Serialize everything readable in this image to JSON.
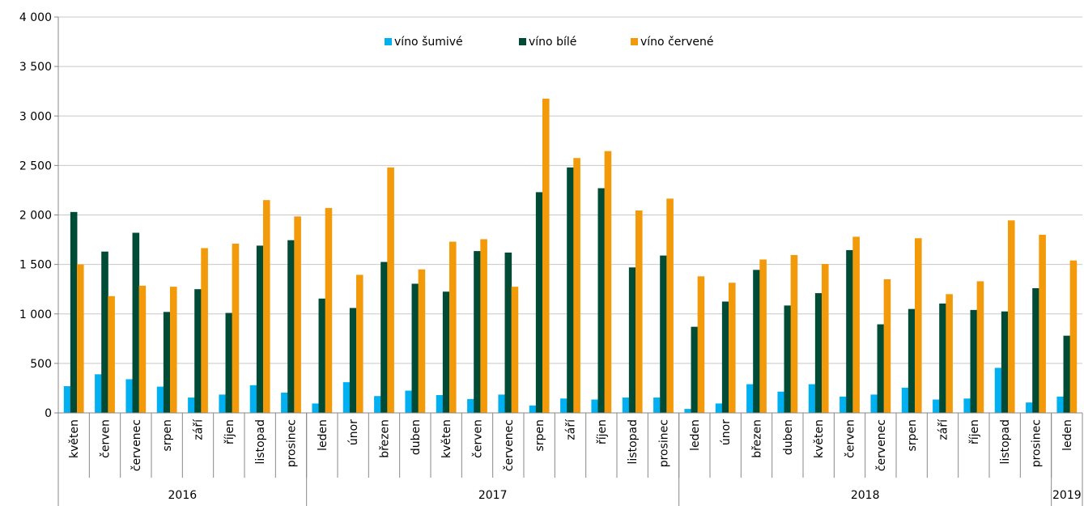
{
  "chart_data": {
    "type": "bar",
    "title": "",
    "xlabel": "",
    "ylabel": "",
    "ylim": [
      0,
      4000
    ],
    "y_ticks": [
      "0",
      "500",
      "1 000",
      "1 500",
      "2 000",
      "2 500",
      "3 000",
      "3 500",
      "4 000"
    ],
    "y_tick_values": [
      0,
      500,
      1000,
      1500,
      2000,
      2500,
      3000,
      3500,
      4000
    ],
    "grid": true,
    "legend_position": "top-center",
    "categories": [
      "květen",
      "červen",
      "červenec",
      "srpen",
      "září",
      "říjen",
      "listopad",
      "prosinec",
      "leden",
      "únor",
      "březen",
      "duben",
      "květen",
      "červen",
      "červenec",
      "srpen",
      "září",
      "říjen",
      "listopad",
      "prosinec",
      "leden",
      "únor",
      "březen",
      "duben",
      "květen",
      "červen",
      "červenec",
      "srpen",
      "září",
      "říjen",
      "listopad",
      "prosinec",
      "leden"
    ],
    "year_groups": [
      {
        "label": "2016",
        "start": 0,
        "count": 8
      },
      {
        "label": "2017",
        "start": 8,
        "count": 12
      },
      {
        "label": "2018",
        "start": 20,
        "count": 12
      },
      {
        "label": "2019",
        "start": 32,
        "count": 1
      }
    ],
    "series": [
      {
        "name": "víno šumivé",
        "color": "#00b0f0",
        "values": [
          270,
          390,
          340,
          265,
          155,
          185,
          280,
          205,
          95,
          310,
          170,
          225,
          180,
          140,
          185,
          75,
          145,
          135,
          155,
          155,
          40,
          95,
          290,
          215,
          290,
          165,
          185,
          255,
          135,
          145,
          455,
          105,
          165
        ]
      },
      {
        "name": "víno bílé",
        "color": "#004b35",
        "values": [
          2030,
          1630,
          1820,
          1020,
          1250,
          1010,
          1690,
          1745,
          1155,
          1060,
          1525,
          1305,
          1225,
          1635,
          1620,
          2230,
          2480,
          2270,
          1470,
          1590,
          870,
          1125,
          1445,
          1085,
          1210,
          1645,
          895,
          1050,
          1105,
          1040,
          1025,
          1260,
          780
        ]
      },
      {
        "name": "víno červené",
        "color": "#f39a0a",
        "values": [
          1500,
          1180,
          1285,
          1275,
          1665,
          1710,
          2150,
          1985,
          2070,
          1395,
          2480,
          1450,
          1730,
          1755,
          1275,
          3175,
          2575,
          2645,
          2045,
          2165,
          1380,
          1315,
          1550,
          1595,
          1505,
          1780,
          1350,
          1765,
          1200,
          1330,
          1945,
          1800,
          1540
        ]
      }
    ]
  }
}
